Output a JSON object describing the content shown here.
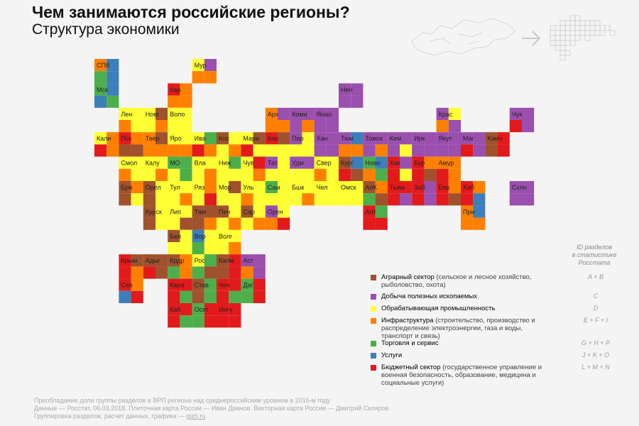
{
  "header": {
    "title": "Чем занимаются российские регионы?",
    "subtitle": "Структура экономики"
  },
  "colors": {
    "A": "#a0522d",
    "C": "#9b4fae",
    "D": "#ffff33",
    "E": "#ff8000",
    "G": "#4daf4a",
    "J": "#3d7fba",
    "L": "#e31a1c"
  },
  "regions": [
    {
      "label": "СПб",
      "cells": [
        "E",
        "J",
        "G",
        "J"
      ]
    },
    {
      "label": "Мур",
      "cells": [
        "D",
        "C",
        "E",
        "E"
      ]
    },
    {
      "label": "Мск",
      "cells": [
        "G",
        "J",
        "J",
        "G"
      ]
    },
    {
      "label": "Кар",
      "cells": [
        "L",
        "E",
        "E",
        "E"
      ]
    },
    {
      "label": "Нен",
      "cells": [
        "C",
        "C",
        "C",
        "C"
      ]
    },
    {
      "label": "Лен",
      "cells": [
        "D",
        "D",
        "E",
        "D"
      ]
    },
    {
      "label": "Новг",
      "cells": [
        "D",
        "A",
        "D",
        "E"
      ]
    },
    {
      "label": "Воло",
      "cells": [
        "D",
        "D",
        "D",
        "D"
      ]
    },
    {
      "label": "Арх",
      "cells": [
        "E",
        "C",
        "E",
        "E"
      ]
    },
    {
      "label": "Коми",
      "cells": [
        "C",
        "C",
        "C",
        "E"
      ]
    },
    {
      "label": "Янал",
      "cells": [
        "C",
        "C",
        "C",
        "C"
      ]
    },
    {
      "label": "Крас",
      "cells": [
        "C",
        "D",
        "E",
        "C"
      ]
    },
    {
      "label": "Чук",
      "cells": [
        "C",
        "C",
        "L",
        "C"
      ]
    },
    {
      "label": "Кали",
      "cells": [
        "D",
        "E",
        "L",
        "E"
      ]
    },
    {
      "label": "Пск",
      "cells": [
        "L",
        "E",
        "A",
        "A"
      ]
    },
    {
      "label": "Твер",
      "cells": [
        "E",
        "A",
        "E",
        "E"
      ]
    },
    {
      "label": "Яро",
      "cells": [
        "D",
        "D",
        "E",
        "E"
      ]
    },
    {
      "label": "Ива",
      "cells": [
        "D",
        "G",
        "L",
        "E"
      ]
    },
    {
      "label": "Кос",
      "cells": [
        "A",
        "D",
        "D",
        "E"
      ]
    },
    {
      "label": "Мари",
      "cells": [
        "D",
        "A",
        "L",
        "D"
      ]
    },
    {
      "label": "Кир",
      "cells": [
        "L",
        "A",
        "D",
        "D"
      ]
    },
    {
      "label": "Пер",
      "cells": [
        "C",
        "D",
        "D",
        "D"
      ]
    },
    {
      "label": "Хан",
      "cells": [
        "C",
        "C",
        "C",
        "C"
      ]
    },
    {
      "label": "Тюм",
      "cells": [
        "C",
        "J",
        "E",
        "E"
      ]
    },
    {
      "label": "Томск",
      "cells": [
        "C",
        "C",
        "C",
        "E"
      ]
    },
    {
      "label": "Кем",
      "cells": [
        "C",
        "C",
        "C",
        "D"
      ]
    },
    {
      "label": "Ирк",
      "cells": [
        "C",
        "C",
        "C",
        "C"
      ]
    },
    {
      "label": "Якут",
      "cells": [
        "C",
        "C",
        "C",
        "C"
      ]
    },
    {
      "label": "Маг",
      "cells": [
        "C",
        "C",
        "L",
        "C"
      ]
    },
    {
      "label": "Камч",
      "cells": [
        "A",
        "L",
        "A",
        "L"
      ]
    },
    {
      "label": "Смол",
      "cells": [
        "D",
        "D",
        "E",
        "D"
      ]
    },
    {
      "label": "Калу",
      "cells": [
        "D",
        "D",
        "D",
        "E"
      ]
    },
    {
      "label": "МО",
      "cells": [
        "G",
        "G",
        "D",
        "G"
      ]
    },
    {
      "label": "Вла",
      "cells": [
        "D",
        "D",
        "D",
        "E"
      ]
    },
    {
      "label": "Ниж",
      "cells": [
        "D",
        "G",
        "D",
        "D"
      ]
    },
    {
      "label": "Чув",
      "cells": [
        "D",
        "L",
        "D",
        "E"
      ]
    },
    {
      "label": "Тат",
      "cells": [
        "C",
        "D",
        "D",
        "D"
      ]
    },
    {
      "label": "Удм",
      "cells": [
        "C",
        "C",
        "D",
        "D"
      ]
    },
    {
      "label": "Свер",
      "cells": [
        "D",
        "D",
        "E",
        "D"
      ]
    },
    {
      "label": "Кург",
      "cells": [
        "A",
        "J",
        "L",
        "A"
      ]
    },
    {
      "label": "Ново",
      "cells": [
        "G",
        "J",
        "E",
        "G"
      ]
    },
    {
      "label": "Хак",
      "cells": [
        "L",
        "C",
        "L",
        "D"
      ]
    },
    {
      "label": "Бур",
      "cells": [
        "L",
        "E",
        "L",
        "A"
      ]
    },
    {
      "label": "Амур",
      "cells": [
        "E",
        "E",
        "L",
        "E"
      ]
    },
    {
      "label": "Бря",
      "cells": [
        "A",
        "E",
        "A",
        "D"
      ]
    },
    {
      "label": "Орел",
      "cells": [
        "A",
        "D",
        "A",
        "D"
      ]
    },
    {
      "label": "Тул",
      "cells": [
        "D",
        "D",
        "D",
        "E"
      ]
    },
    {
      "label": "Ряз",
      "cells": [
        "D",
        "E",
        "D",
        "L"
      ]
    },
    {
      "label": "Мор",
      "cells": [
        "D",
        "A",
        "D",
        "D"
      ]
    },
    {
      "label": "Уль",
      "cells": [
        "D",
        "D",
        "E",
        "D"
      ]
    },
    {
      "label": "Сам",
      "cells": [
        "G",
        "D",
        "D",
        "D"
      ]
    },
    {
      "label": "Бшк",
      "cells": [
        "D",
        "D",
        "D",
        "E"
      ]
    },
    {
      "label": "Чел",
      "cells": [
        "D",
        "D",
        "D",
        "D"
      ]
    },
    {
      "label": "Омск",
      "cells": [
        "D",
        "D",
        "D",
        "D"
      ]
    },
    {
      "label": "АлК",
      "cells": [
        "A",
        "E",
        "G",
        "A"
      ]
    },
    {
      "label": "Тыва",
      "cells": [
        "L",
        "L",
        "L",
        "C"
      ]
    },
    {
      "label": "Заб",
      "cells": [
        "L",
        "C",
        "L",
        "C"
      ]
    },
    {
      "label": "Евр",
      "cells": [
        "L",
        "E",
        "L",
        "A"
      ]
    },
    {
      "label": "Хаб",
      "cells": [
        "L",
        "E",
        "L",
        "J"
      ]
    },
    {
      "label": "Схлн",
      "cells": [
        "C",
        "C",
        "C",
        "C"
      ]
    },
    {
      "label": "Курск",
      "cells": [
        "A",
        "D",
        "A",
        "D"
      ]
    },
    {
      "label": "Лип",
      "cells": [
        "D",
        "D",
        "D",
        "A"
      ]
    },
    {
      "label": "Там",
      "cells": [
        "A",
        "A",
        "A",
        "E"
      ]
    },
    {
      "label": "Пен",
      "cells": [
        "A",
        "D",
        "D",
        "E"
      ]
    },
    {
      "label": "Сар",
      "cells": [
        "A",
        "D",
        "D",
        "E"
      ]
    },
    {
      "label": "Орен",
      "cells": [
        "C",
        "D",
        "E",
        "L"
      ]
    },
    {
      "label": "Алт",
      "cells": [
        "L",
        "G",
        "L",
        "L"
      ]
    },
    {
      "label": "При",
      "cells": [
        "E",
        "J",
        "E",
        "E"
      ]
    },
    {
      "label": "Бел",
      "cells": [
        "A",
        "D",
        "D",
        "D"
      ]
    },
    {
      "label": "Вор",
      "cells": [
        "J",
        "D",
        "G",
        "D"
      ]
    },
    {
      "label": "Волг",
      "cells": [
        "D",
        "D",
        "D",
        "E"
      ]
    },
    {
      "label": "Крым",
      "cells": [
        "L",
        "A",
        "L",
        "E"
      ]
    },
    {
      "label": "Адыг",
      "cells": [
        "A",
        "A",
        "L",
        "A"
      ]
    },
    {
      "label": "Крдр",
      "cells": [
        "A",
        "E",
        "G",
        "E"
      ]
    },
    {
      "label": "Рос",
      "cells": [
        "D",
        "G",
        "G",
        "A"
      ]
    },
    {
      "label": "Калм",
      "cells": [
        "A",
        "L",
        "A",
        "L"
      ]
    },
    {
      "label": "Аст",
      "cells": [
        "C",
        "C",
        "E",
        "C"
      ]
    },
    {
      "label": "Сев",
      "cells": [
        "L",
        "E",
        "J",
        "L"
      ]
    },
    {
      "label": "Кара",
      "cells": [
        "L",
        "L",
        "L",
        "G"
      ]
    },
    {
      "label": "Став",
      "cells": [
        "A",
        "G",
        "A",
        "G"
      ]
    },
    {
      "label": "Чеч",
      "cells": [
        "L",
        "L",
        "L",
        "G"
      ]
    },
    {
      "label": "Даг",
      "cells": [
        "G",
        "L",
        "G",
        "L"
      ]
    },
    {
      "label": "Каб",
      "cells": [
        "L",
        "L",
        "L",
        "G"
      ]
    },
    {
      "label": "Осет",
      "cells": [
        "G",
        "L",
        "G",
        "L"
      ]
    },
    {
      "label": "Ингу",
      "cells": [
        "L",
        "L",
        "L",
        "L"
      ]
    }
  ],
  "legend": {
    "id_header": [
      "ID разделов",
      "в статистике",
      "Росстата"
    ],
    "items": [
      {
        "color_key": "A",
        "name": "Аграрный сектор",
        "detail": "(сельское и лесное хозяйство, рыболовство, охота)",
        "ids": "A + B"
      },
      {
        "color_key": "C",
        "name": "Добыча полезных ископаемых",
        "detail": "",
        "ids": "C"
      },
      {
        "color_key": "D",
        "name": "Обрабатывающая промышленность",
        "detail": "",
        "ids": "D"
      },
      {
        "color_key": "E",
        "name": "Инфраструктура",
        "detail": "(строительство, производство и распределение электроэнергии, газа и воды, транспорт и связь)",
        "ids": "E + F + I"
      },
      {
        "color_key": "G",
        "name": "Торговля и сервис",
        "detail": "",
        "ids": "G + H + P"
      },
      {
        "color_key": "J",
        "name": "Услуги",
        "detail": "",
        "ids": "J + K + O"
      },
      {
        "color_key": "L",
        "name": "Бюджетный сектор",
        "detail": "(государственное управление и военная безопасность, образование, медицина и социальные услуги)",
        "ids": "L + M + N"
      }
    ]
  },
  "footer": {
    "line1": "Преобладание доли группы разделов в ВРП региона над среднероссийским уровнем в 2015-м году",
    "line2": "Данные — Росстат, 06.03.2018. Плиточная карта России — Иван Дианов. Векторная карта России — Дмитрий Скляров",
    "line3_prefix": "Группировка разделов, расчет данных, графика — ",
    "line3_link": "gizh.ru"
  }
}
